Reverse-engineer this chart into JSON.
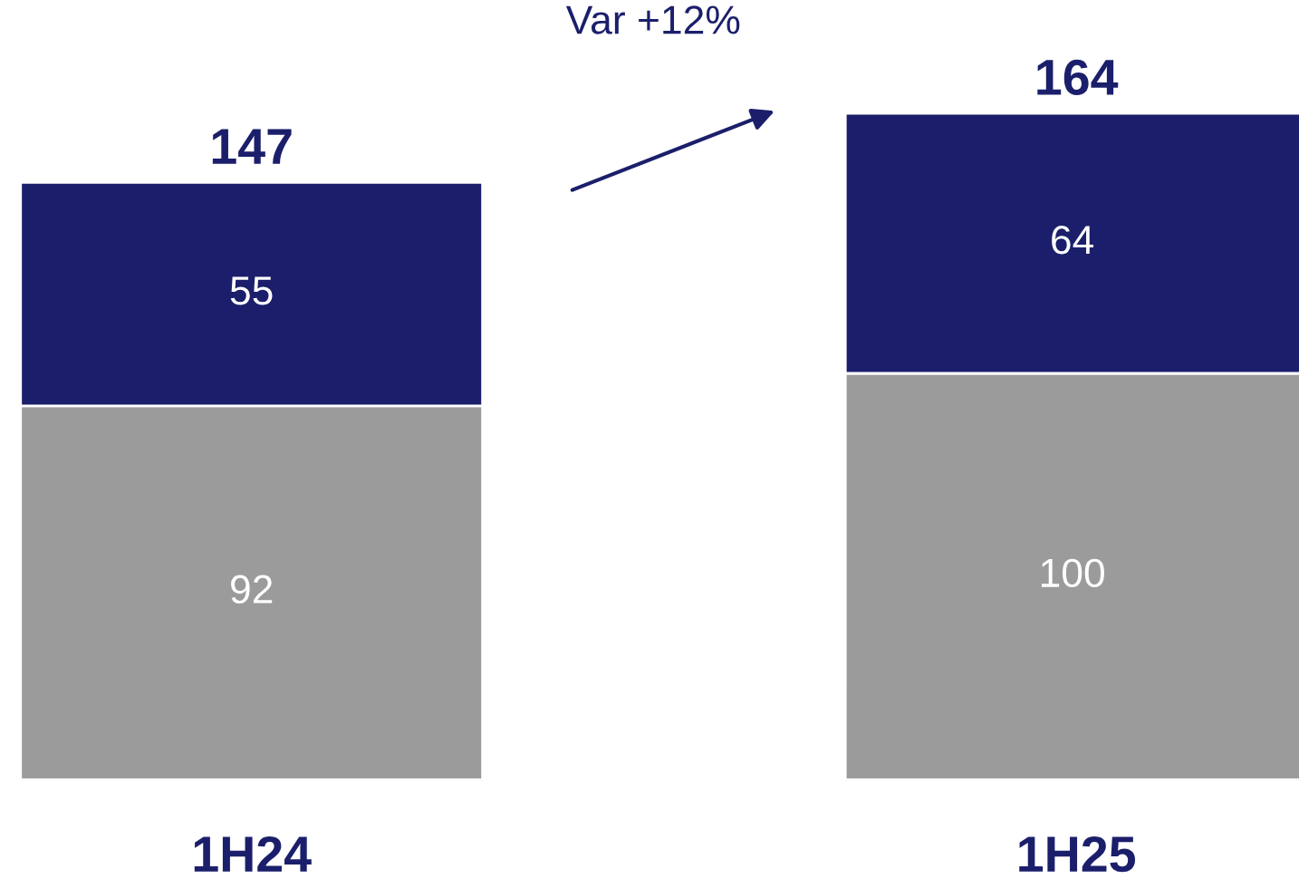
{
  "chart_data": {
    "type": "bar",
    "stacked": true,
    "categories": [
      "1H24",
      "1H25"
    ],
    "series": [
      {
        "color": "#9b9b9b",
        "values": [
          92,
          100
        ]
      },
      {
        "color": "#1b1f6b",
        "values": [
          55,
          64
        ]
      }
    ],
    "data_labels": true,
    "totals": [
      "147",
      "164"
    ],
    "annotations": [
      "Var +12%"
    ],
    "grid": false,
    "legend": false
  }
}
